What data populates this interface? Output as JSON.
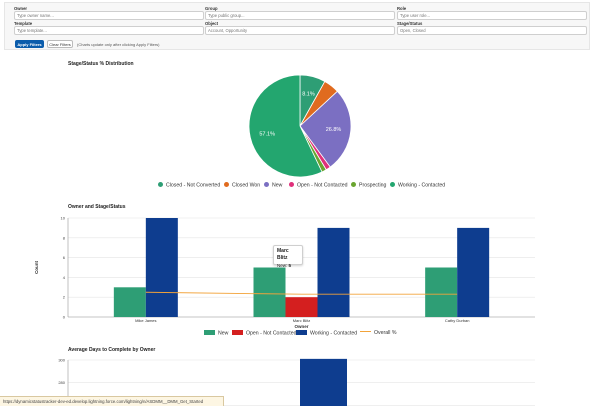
{
  "filters": {
    "owner": {
      "label": "Owner",
      "placeholder": "Type owner name..."
    },
    "group": {
      "label": "Group",
      "placeholder": "Type public group..."
    },
    "role": {
      "label": "Role",
      "placeholder": "Type user role..."
    },
    "template": {
      "label": "Template",
      "placeholder": "Type template..."
    },
    "object": {
      "label": "Object",
      "value": "Account, Opportunity"
    },
    "stage_status": {
      "label": "Stage/Status",
      "value": "Open, Closed"
    },
    "apply_label": "Apply Filters",
    "clear_label": "Clear Filters",
    "note": "(Charts update only after clicking Apply Filters)"
  },
  "colors": {
    "green": "#2e9e75",
    "orange": "#e06b1f",
    "purple": "#7b6fc2",
    "pink": "#e0307b",
    "lime": "#6aa530",
    "teal": "#23a66f",
    "red": "#d41f1f",
    "blue": "#0e3d8f",
    "overall": "#f2a33a"
  },
  "charts": [
    {
      "section_title": "Stage/Status % Distribution",
      "chart_data": {
        "type": "pie",
        "title": "Stage/Status % Distribution",
        "slices": [
          {
            "label": "Closed - Not Converted",
            "value": 8.1,
            "show_label": "8.1%",
            "color": "#2e9e75"
          },
          {
            "label": "Closed Won",
            "value": 5.0,
            "show_label": "",
            "color": "#e06b1f"
          },
          {
            "label": "New",
            "value": 26.8,
            "show_label": "26.8%",
            "color": "#7b6fc2"
          },
          {
            "label": "Open - Not Contacted",
            "value": 1.5,
            "show_label": "",
            "color": "#e0307b"
          },
          {
            "label": "Prospecting",
            "value": 1.5,
            "show_label": "",
            "color": "#6aa530"
          },
          {
            "label": "Working - Contacted",
            "value": 57.1,
            "show_label": "57.1%",
            "color": "#23a66f"
          }
        ],
        "legend_position": "bottom"
      }
    },
    {
      "section_title": "Owner and Stage/Status",
      "chart_data": {
        "type": "bar",
        "title": "Owner and Stage/Status",
        "categories": [
          "Mike James",
          "Marc Blitz",
          "Cathy Durban"
        ],
        "series": [
          {
            "name": "New",
            "values": [
              3,
              5,
              5
            ],
            "color": "#2e9e75"
          },
          {
            "name": "Open - Not Contacted",
            "values": [
              0,
              2,
              0
            ],
            "color": "#d41f1f"
          },
          {
            "name": "Working - Contacted",
            "values": [
              10,
              9,
              9
            ],
            "color": "#0e3d8f"
          }
        ],
        "overlay_line": {
          "name": "Overall %",
          "values": [
            2.5,
            2.3,
            2.3
          ],
          "color": "#f2a33a"
        },
        "xlabel": "Owner",
        "ylabel": "Count",
        "yticks": [
          0,
          2,
          4,
          6,
          8,
          10
        ],
        "ylim": [
          0,
          10
        ],
        "grid": true,
        "legend_position": "bottom"
      },
      "tooltip": {
        "title": "Marc Blitz",
        "label": "New:",
        "value": "5"
      }
    },
    {
      "section_title": "Average Days to Complete by Owner",
      "chart_data": {
        "type": "bar",
        "title": "Average Days to Complete by Owner",
        "categories": [
          ""
        ],
        "series": [
          {
            "name": "",
            "values": [
              301
            ],
            "color": "#0e3d8f"
          }
        ],
        "yticks": [
          260,
          280,
          300
        ],
        "ylim": [
          240,
          300
        ],
        "grid": true
      }
    }
  ],
  "statusbar": "https://dynamicstatustracker-dev-ed.develop.lightning.force.com/lightning/n/ASDMM__DMM_Get_Started"
}
